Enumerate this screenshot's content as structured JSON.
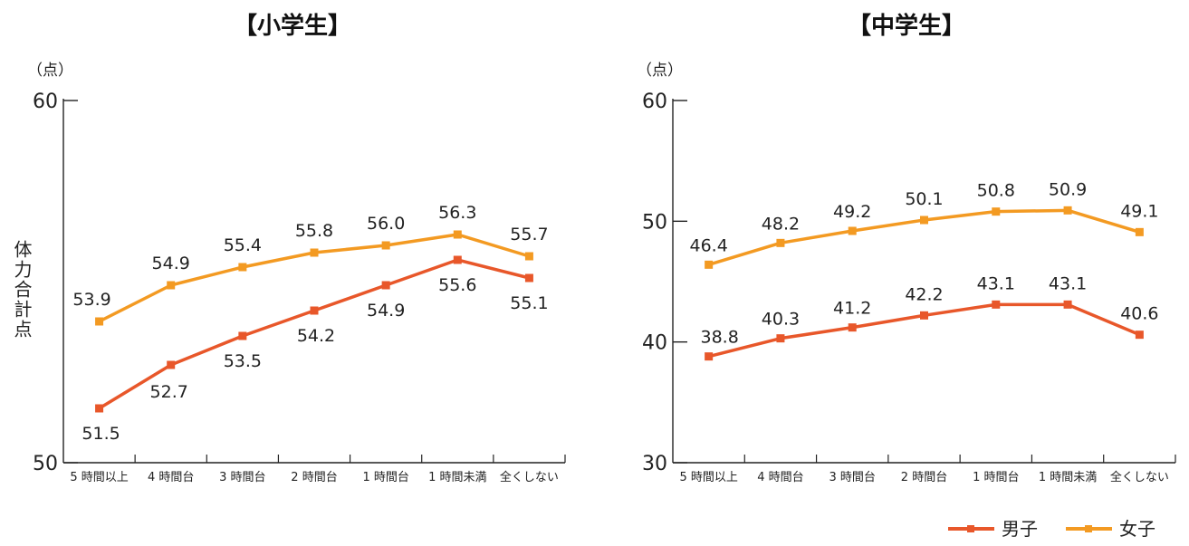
{
  "chart_data": [
    {
      "type": "line",
      "title": "【小学生】",
      "unit_label": "（点）",
      "ylabel": "体力合計点",
      "xlabel": "",
      "ylim": [
        50,
        60
      ],
      "yticks": [
        "50",
        "60"
      ],
      "categories": [
        "5 時間以上",
        "4 時間台",
        "3 時間台",
        "2 時間台",
        "1 時間台",
        "1 時間未満",
        "全くしない"
      ],
      "series": [
        {
          "name": "男子",
          "color": "#e8572a",
          "values": [
            51.5,
            52.7,
            53.5,
            54.2,
            54.9,
            55.6,
            55.1
          ],
          "labels": [
            "51.5",
            "52.7",
            "53.5",
            "54.2",
            "54.9",
            "55.6",
            "55.1"
          ]
        },
        {
          "name": "女子",
          "color": "#f39a22",
          "values": [
            53.9,
            54.9,
            55.4,
            55.8,
            56.0,
            56.3,
            55.7
          ],
          "labels": [
            "53.9",
            "54.9",
            "55.4",
            "55.8",
            "56.0",
            "56.3",
            "55.7"
          ]
        }
      ],
      "grid": false
    },
    {
      "type": "line",
      "title": "【中学生】",
      "unit_label": "（点）",
      "ylabel": "",
      "xlabel": "",
      "ylim": [
        30,
        60
      ],
      "yticks": [
        "30",
        "40",
        "50",
        "60"
      ],
      "categories": [
        "5 時間以上",
        "4 時間台",
        "3 時間台",
        "2 時間台",
        "1 時間台",
        "1 時間未満",
        "全くしない"
      ],
      "series": [
        {
          "name": "男子",
          "color": "#e8572a",
          "values": [
            38.8,
            40.3,
            41.2,
            42.2,
            43.1,
            43.1,
            40.6
          ],
          "labels": [
            "38.8",
            "40.3",
            "41.2",
            "42.2",
            "43.1",
            "43.1",
            "40.6"
          ]
        },
        {
          "name": "女子",
          "color": "#f39a22",
          "values": [
            46.4,
            48.2,
            49.2,
            50.1,
            50.8,
            50.9,
            49.1
          ],
          "labels": [
            "46.4",
            "48.2",
            "49.2",
            "50.1",
            "50.8",
            "50.9",
            "49.1"
          ]
        }
      ],
      "grid": false
    }
  ],
  "legend": {
    "placement": "bottom-right",
    "items": [
      {
        "name": "男子",
        "color": "#e8572a"
      },
      {
        "name": "女子",
        "color": "#f39a22"
      }
    ]
  }
}
